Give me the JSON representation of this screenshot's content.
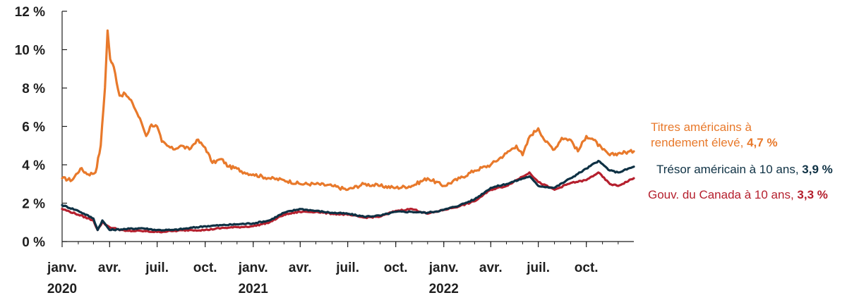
{
  "chart_data": {
    "type": "line",
    "title": "",
    "xlabel": "",
    "ylabel": "",
    "x_range": [
      "2020-01-01",
      "2022-12-31"
    ],
    "ylim": [
      0,
      12
    ],
    "y_ticks": [
      0,
      2,
      4,
      6,
      8,
      10,
      12
    ],
    "y_tick_labels": [
      "0 %",
      "2 %",
      "4 %",
      "6 %",
      "8 %",
      "10 %",
      "12 %"
    ],
    "x_ticks": [
      {
        "date": "2020-01-01",
        "label": "janv."
      },
      {
        "date": "2020-04-01",
        "label": "avr."
      },
      {
        "date": "2020-07-01",
        "label": "juil."
      },
      {
        "date": "2020-10-01",
        "label": "oct."
      },
      {
        "date": "2021-01-01",
        "label": "janv."
      },
      {
        "date": "2021-04-01",
        "label": "avr."
      },
      {
        "date": "2021-07-01",
        "label": "juil."
      },
      {
        "date": "2021-10-01",
        "label": "oct."
      },
      {
        "date": "2022-01-01",
        "label": "janv."
      },
      {
        "date": "2022-04-01",
        "label": "avr."
      },
      {
        "date": "2022-07-01",
        "label": "juil."
      },
      {
        "date": "2022-10-01",
        "label": "oct."
      }
    ],
    "year_labels": [
      {
        "date": "2020-01-01",
        "label": "2020"
      },
      {
        "date": "2021-01-01",
        "label": "2021"
      },
      {
        "date": "2022-01-01",
        "label": "2022"
      }
    ],
    "grid": false,
    "legend": "right, labels next to line ends",
    "series": [
      {
        "name": "Titres américains à rendement élevé",
        "label_lines": [
          "Titres américains à",
          "rendement élevé, "
        ],
        "end_value_label": "4,7 %",
        "color": "#e8792b",
        "x": [
          "2020-01-01",
          "2020-01-20",
          "2020-02-05",
          "2020-02-20",
          "2020-03-05",
          "2020-03-15",
          "2020-03-23",
          "2020-03-28",
          "2020-04-02",
          "2020-04-09",
          "2020-04-20",
          "2020-05-01",
          "2020-05-15",
          "2020-06-01",
          "2020-06-10",
          "2020-06-20",
          "2020-07-01",
          "2020-07-10",
          "2020-07-20",
          "2020-08-01",
          "2020-08-15",
          "2020-09-01",
          "2020-09-15",
          "2020-10-01",
          "2020-10-15",
          "2020-11-01",
          "2020-11-15",
          "2020-12-01",
          "2020-12-15",
          "2021-01-01",
          "2021-02-01",
          "2021-03-01",
          "2021-04-01",
          "2021-05-01",
          "2021-06-01",
          "2021-07-01",
          "2021-08-01",
          "2021-09-01",
          "2021-10-01",
          "2021-11-01",
          "2021-12-01",
          "2022-01-01",
          "2022-02-01",
          "2022-03-01",
          "2022-04-01",
          "2022-05-01",
          "2022-05-20",
          "2022-06-01",
          "2022-06-15",
          "2022-07-01",
          "2022-07-15",
          "2022-08-01",
          "2022-08-15",
          "2022-09-01",
          "2022-09-15",
          "2022-10-01",
          "2022-10-15",
          "2022-11-01",
          "2022-11-15",
          "2022-12-01",
          "2022-12-31"
        ],
        "values": [
          3.3,
          3.2,
          3.8,
          3.5,
          3.6,
          5.0,
          8.0,
          11.0,
          9.5,
          9.1,
          7.6,
          7.7,
          7.2,
          6.2,
          5.5,
          6.1,
          6.0,
          5.2,
          5.0,
          4.8,
          5.0,
          4.8,
          5.3,
          4.9,
          4.1,
          4.3,
          3.9,
          3.8,
          3.6,
          3.5,
          3.3,
          3.2,
          3.0,
          3.0,
          2.9,
          2.7,
          3.0,
          2.9,
          2.8,
          2.9,
          3.3,
          2.9,
          3.3,
          3.7,
          4.0,
          4.6,
          5.0,
          4.5,
          5.5,
          5.9,
          5.2,
          4.8,
          5.4,
          5.3,
          4.7,
          5.5,
          5.3,
          4.8,
          4.5,
          4.6,
          4.7
        ]
      },
      {
        "name": "Trésor américain à 10 ans",
        "label_lines": [
          "Trésor américain à 10 ans, "
        ],
        "end_value_label": "3,9 %",
        "color": "#0e3144",
        "x": [
          "2020-01-01",
          "2020-02-01",
          "2020-03-01",
          "2020-03-09",
          "2020-03-18",
          "2020-04-01",
          "2020-05-01",
          "2020-06-01",
          "2020-07-01",
          "2020-08-01",
          "2020-09-01",
          "2020-10-01",
          "2020-11-01",
          "2020-12-01",
          "2021-01-01",
          "2021-02-01",
          "2021-03-01",
          "2021-03-31",
          "2021-05-01",
          "2021-06-01",
          "2021-07-01",
          "2021-08-01",
          "2021-09-01",
          "2021-10-01",
          "2021-11-01",
          "2021-12-01",
          "2022-01-01",
          "2022-02-01",
          "2022-03-01",
          "2022-04-01",
          "2022-05-01",
          "2022-06-14",
          "2022-07-01",
          "2022-08-01",
          "2022-09-01",
          "2022-10-01",
          "2022-10-24",
          "2022-11-15",
          "2022-12-01",
          "2022-12-31"
        ],
        "values": [
          1.9,
          1.6,
          1.2,
          0.6,
          1.1,
          0.6,
          0.65,
          0.7,
          0.6,
          0.6,
          0.7,
          0.8,
          0.85,
          0.9,
          0.95,
          1.1,
          1.5,
          1.7,
          1.6,
          1.5,
          1.45,
          1.3,
          1.35,
          1.55,
          1.55,
          1.5,
          1.65,
          1.9,
          2.2,
          2.8,
          3.0,
          3.4,
          2.9,
          2.8,
          3.3,
          3.8,
          4.2,
          3.7,
          3.6,
          3.9
        ]
      },
      {
        "name": "Gouv. du Canada à 10 ans",
        "label_lines": [
          "Gouv. du Canada à 10 ans, "
        ],
        "end_value_label": "3,3 %",
        "color": "#b5202e",
        "x": [
          "2020-01-01",
          "2020-02-01",
          "2020-03-01",
          "2020-03-09",
          "2020-03-18",
          "2020-04-01",
          "2020-05-01",
          "2020-06-01",
          "2020-07-01",
          "2020-08-01",
          "2020-09-01",
          "2020-10-01",
          "2020-11-01",
          "2020-12-01",
          "2021-01-01",
          "2021-02-01",
          "2021-03-01",
          "2021-03-31",
          "2021-05-01",
          "2021-06-01",
          "2021-07-01",
          "2021-08-01",
          "2021-09-01",
          "2021-10-01",
          "2021-11-01",
          "2021-12-01",
          "2022-01-01",
          "2022-02-01",
          "2022-03-01",
          "2022-04-01",
          "2022-05-01",
          "2022-06-14",
          "2022-07-01",
          "2022-08-01",
          "2022-09-01",
          "2022-10-01",
          "2022-10-24",
          "2022-11-15",
          "2022-12-01",
          "2022-12-31"
        ],
        "values": [
          1.7,
          1.4,
          1.1,
          0.6,
          1.0,
          0.75,
          0.55,
          0.55,
          0.5,
          0.55,
          0.6,
          0.6,
          0.7,
          0.75,
          0.8,
          1.0,
          1.4,
          1.55,
          1.55,
          1.45,
          1.4,
          1.25,
          1.3,
          1.6,
          1.7,
          1.45,
          1.65,
          1.85,
          2.1,
          2.7,
          2.9,
          3.6,
          3.1,
          2.7,
          3.05,
          3.2,
          3.6,
          3.0,
          2.9,
          3.3
        ]
      }
    ]
  }
}
